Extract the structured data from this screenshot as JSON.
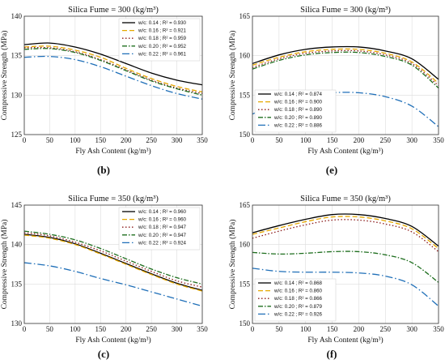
{
  "figure": {
    "colors": {
      "w/c: 0.14": "#000000",
      "w/c: 0.16": "#e6a800",
      "w/c: 0.18": "#8b1a1a",
      "w/c: 0.20": "#1e6e1e",
      "w/c: 0.22": "#1f6fb8"
    },
    "dash_styles": [
      "solid",
      "dash",
      "dot",
      "dashdot",
      "dashdot-long"
    ]
  },
  "chart_data": [
    {
      "panel": "(b)",
      "type": "line",
      "title": "Silica Fume = 300 (kg/m³)",
      "xlabel": "Fly Ash Content (kg/m³)",
      "ylabel": "Compressive Strength (MPa)",
      "xlim": [
        0,
        350
      ],
      "ylim": [
        125,
        140
      ],
      "xticks": [
        0,
        50,
        100,
        150,
        200,
        250,
        300,
        350
      ],
      "yticks": [
        125,
        130,
        135,
        140
      ],
      "grid": true,
      "legend_position": "top-right",
      "x": [
        0,
        50,
        100,
        150,
        200,
        250,
        300,
        350
      ],
      "series": [
        {
          "name": "w/c: 0.14 ; R² = 0.930",
          "values": [
            136.4,
            136.6,
            136.1,
            135.2,
            134.0,
            132.8,
            131.9,
            131.3
          ]
        },
        {
          "name": "w/c: 0.16 ; R² = 0.921",
          "values": [
            136.1,
            136.2,
            135.7,
            134.8,
            133.4,
            132.1,
            131.1,
            130.4
          ]
        },
        {
          "name": "w/c: 0.18 ; R² = 0.959",
          "values": [
            136.0,
            136.0,
            135.5,
            134.5,
            133.2,
            131.9,
            130.9,
            130.2
          ]
        },
        {
          "name": "w/c: 0.20 ; R² = 0.952",
          "values": [
            135.8,
            135.9,
            135.4,
            134.4,
            133.1,
            131.8,
            130.8,
            130.0
          ]
        },
        {
          "name": "w/c: 0.22 ; R² = 0.961",
          "values": [
            134.8,
            134.9,
            134.5,
            133.6,
            132.4,
            131.2,
            130.2,
            129.5
          ]
        }
      ]
    },
    {
      "panel": "(e)",
      "type": "line",
      "title": "Silica Fume = 300 (kg/m³)",
      "xlabel": "Fly Ash Content (kg/m³)",
      "ylabel": "Compressive Strength (MPa)",
      "xlim": [
        0,
        350
      ],
      "ylim": [
        150,
        165
      ],
      "xticks": [
        0,
        50,
        100,
        150,
        200,
        250,
        300,
        350
      ],
      "yticks": [
        150,
        155,
        160,
        165
      ],
      "grid": true,
      "legend_position": "bottom-left",
      "x": [
        0,
        50,
        100,
        150,
        200,
        250,
        300,
        350
      ],
      "series": [
        {
          "name": "w/c: 0.14 ; R² = 0.874",
          "values": [
            159.0,
            160.1,
            160.8,
            161.1,
            161.1,
            160.6,
            159.6,
            157.0
          ]
        },
        {
          "name": "w/c: 0.16 ; R² = 0.900",
          "values": [
            158.8,
            159.8,
            160.5,
            160.8,
            160.8,
            160.3,
            159.2,
            156.5
          ]
        },
        {
          "name": "w/c: 0.18 ; R² = 0.890",
          "values": [
            158.5,
            159.6,
            160.3,
            160.6,
            160.6,
            160.1,
            159.0,
            156.2
          ]
        },
        {
          "name": "w/c: 0.20 ; R² = 0.890",
          "values": [
            158.3,
            159.4,
            160.1,
            160.4,
            160.4,
            159.9,
            158.8,
            155.9
          ]
        },
        {
          "name": "w/c: 0.22 ; R² = 0.886",
          "values": [
            152.6,
            154.0,
            154.9,
            155.3,
            155.3,
            154.8,
            153.6,
            151.0
          ]
        }
      ]
    },
    {
      "panel": "(c)",
      "type": "line",
      "title": "Silica Fume = 350 (kg/m³)",
      "xlabel": "Fly Ash Content (kg/m³)",
      "ylabel": "Compressive Strength (MPa)",
      "xlim": [
        0,
        350
      ],
      "ylim": [
        130,
        145
      ],
      "xticks": [
        0,
        50,
        100,
        150,
        200,
        250,
        300,
        350
      ],
      "yticks": [
        130,
        135,
        140,
        145
      ],
      "grid": true,
      "legend_position": "top-right",
      "x": [
        0,
        50,
        100,
        150,
        200,
        250,
        300,
        350
      ],
      "series": [
        {
          "name": "w/c: 0.14 ; R² = 0.960",
          "values": [
            141.3,
            140.9,
            140.1,
            138.9,
            137.6,
            136.3,
            135.1,
            134.2
          ]
        },
        {
          "name": "w/c: 0.16 ; R² = 0.960",
          "values": [
            141.2,
            140.8,
            140.0,
            138.8,
            137.5,
            136.2,
            135.0,
            134.1
          ]
        },
        {
          "name": "w/c: 0.18 ; R² = 0.947",
          "values": [
            141.5,
            141.1,
            140.3,
            139.2,
            137.9,
            136.6,
            135.4,
            134.6
          ]
        },
        {
          "name": "w/c: 0.20 ; R² = 0.947",
          "values": [
            141.7,
            141.3,
            140.6,
            139.5,
            138.2,
            136.9,
            135.8,
            135.0
          ]
        },
        {
          "name": "w/c: 0.22 ; R² = 0.924",
          "values": [
            137.7,
            137.3,
            136.6,
            135.7,
            134.9,
            134.0,
            133.1,
            132.2
          ]
        }
      ]
    },
    {
      "panel": "(f)",
      "type": "line",
      "title": "Silica Fume = 350 (kg/m³)",
      "xlabel": "Fly Ash Content (kg/m³)",
      "ylabel": "Compressive Strength (MPa)",
      "xlim": [
        0,
        350
      ],
      "ylim": [
        150,
        165
      ],
      "xticks": [
        0,
        50,
        100,
        150,
        200,
        250,
        300,
        350
      ],
      "yticks": [
        150,
        155,
        160,
        165
      ],
      "grid": true,
      "legend_position": "bottom-left",
      "x": [
        0,
        50,
        100,
        150,
        200,
        250,
        300,
        350
      ],
      "series": [
        {
          "name": "w/c: 0.14 ; R² = 0.868",
          "values": [
            161.5,
            162.4,
            163.2,
            163.8,
            163.8,
            163.3,
            162.3,
            159.8
          ]
        },
        {
          "name": "w/c: 0.16 ; R² = 0.860",
          "values": [
            161.3,
            162.1,
            162.9,
            163.5,
            163.5,
            163.0,
            162.0,
            159.5
          ]
        },
        {
          "name": "w/c: 0.18 ; R² = 0.866",
          "values": [
            160.8,
            161.7,
            162.5,
            163.1,
            163.1,
            162.6,
            161.6,
            159.1
          ]
        },
        {
          "name": "w/c: 0.20 ; R² = 0.879",
          "values": [
            159.0,
            158.8,
            158.9,
            159.1,
            159.1,
            158.7,
            157.7,
            155.2
          ]
        },
        {
          "name": "w/c: 0.22 ; R² = 0.926",
          "values": [
            157.0,
            156.6,
            156.5,
            156.5,
            156.4,
            156.0,
            154.9,
            152.2
          ]
        }
      ]
    }
  ]
}
